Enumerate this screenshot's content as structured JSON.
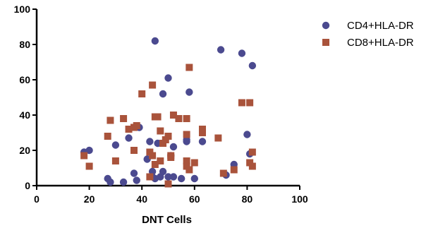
{
  "chart_data": {
    "type": "scatter",
    "title": "",
    "xlabel": "DNT Cells",
    "ylabel": "",
    "xlim": [
      0,
      100
    ],
    "ylim": [
      0,
      100
    ],
    "xticks": [
      "0",
      "20",
      "40",
      "60",
      "80",
      "100"
    ],
    "yticks": [
      "0",
      "20",
      "40",
      "60",
      "80",
      "100"
    ],
    "legend_position": "top-right",
    "grid": false,
    "series": [
      {
        "name": "CD4+HLA-DR",
        "marker": "circle",
        "color": "#4b4a8f",
        "points": [
          [
            18,
            19
          ],
          [
            20,
            20
          ],
          [
            27,
            4
          ],
          [
            28,
            2
          ],
          [
            30,
            23
          ],
          [
            33,
            2
          ],
          [
            35,
            27
          ],
          [
            37,
            7
          ],
          [
            38,
            3
          ],
          [
            39,
            33
          ],
          [
            42,
            15
          ],
          [
            43,
            25
          ],
          [
            44,
            8
          ],
          [
            44,
            5
          ],
          [
            45,
            4
          ],
          [
            45,
            82
          ],
          [
            46,
            24
          ],
          [
            47,
            5
          ],
          [
            48,
            52
          ],
          [
            48,
            8
          ],
          [
            50,
            61
          ],
          [
            50,
            5
          ],
          [
            51,
            17
          ],
          [
            52,
            22
          ],
          [
            52,
            5
          ],
          [
            55,
            4
          ],
          [
            57,
            25
          ],
          [
            57,
            26
          ],
          [
            58,
            53
          ],
          [
            60,
            4
          ],
          [
            63,
            25
          ],
          [
            70,
            77
          ],
          [
            72,
            6
          ],
          [
            75,
            12
          ],
          [
            78,
            75
          ],
          [
            80,
            29
          ],
          [
            81,
            18
          ],
          [
            82,
            68
          ]
        ]
      },
      {
        "name": "CD8+HLA-DR",
        "marker": "square",
        "color": "#a9533b",
        "points": [
          [
            18,
            17
          ],
          [
            20,
            11
          ],
          [
            27,
            28
          ],
          [
            28,
            37
          ],
          [
            30,
            14
          ],
          [
            33,
            38
          ],
          [
            35,
            32
          ],
          [
            37,
            33
          ],
          [
            38,
            34
          ],
          [
            37,
            20
          ],
          [
            40,
            52
          ],
          [
            43,
            19
          ],
          [
            43,
            5
          ],
          [
            44,
            17
          ],
          [
            44,
            57
          ],
          [
            45,
            12
          ],
          [
            45,
            39
          ],
          [
            46,
            39
          ],
          [
            47,
            14
          ],
          [
            47,
            31
          ],
          [
            48,
            24
          ],
          [
            49,
            26
          ],
          [
            50,
            28
          ],
          [
            50,
            1
          ],
          [
            51,
            16
          ],
          [
            51,
            17
          ],
          [
            52,
            40
          ],
          [
            54,
            38
          ],
          [
            57,
            38
          ],
          [
            57,
            29
          ],
          [
            57,
            14
          ],
          [
            57,
            11
          ],
          [
            58,
            67
          ],
          [
            58,
            9
          ],
          [
            60,
            13
          ],
          [
            63,
            30
          ],
          [
            63,
            32
          ],
          [
            69,
            27
          ],
          [
            71,
            7
          ],
          [
            75,
            9
          ],
          [
            78,
            47
          ],
          [
            81,
            47
          ],
          [
            81,
            13
          ],
          [
            82,
            11
          ],
          [
            82,
            19
          ]
        ]
      }
    ]
  }
}
